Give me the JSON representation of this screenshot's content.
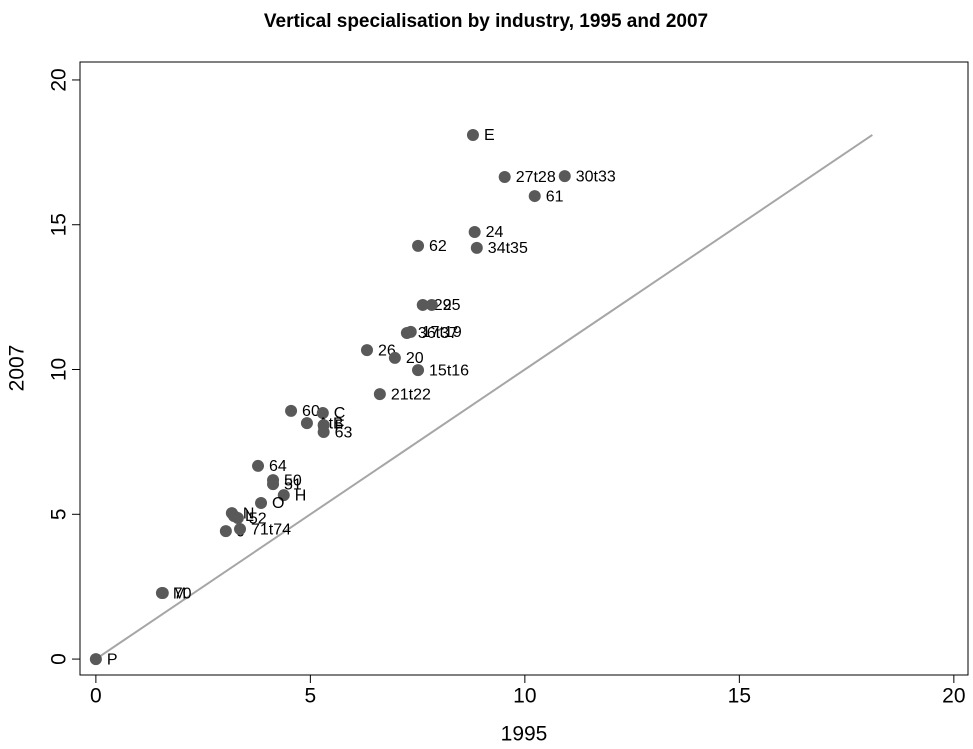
{
  "chart_data": {
    "type": "scatter",
    "title": "Vertical specialisation by industry, 1995 and 2007",
    "xlabel": "1995",
    "ylabel": "2007",
    "point_labels": [
      "E",
      "27t28",
      "30t33",
      "61",
      "24",
      "34t35",
      "62",
      "29",
      "25",
      "36t37",
      "17t19",
      "26",
      "20",
      "15t16",
      "21t22",
      "60",
      "C",
      "AtB",
      "F",
      "63",
      "64",
      "50",
      "51",
      "H",
      "O",
      "N",
      "L",
      "52",
      "J",
      "71t74",
      "M",
      "70",
      "P"
    ],
    "x": [
      8.79,
      9.53,
      10.93,
      10.23,
      8.83,
      8.88,
      7.51,
      7.62,
      7.83,
      7.25,
      7.34,
      6.32,
      6.97,
      7.51,
      6.62,
      4.55,
      5.29,
      4.92,
      5.31,
      5.31,
      3.78,
      4.13,
      4.13,
      4.38,
      3.85,
      3.17,
      3.22,
      3.31,
      3.03,
      3.36,
      1.54,
      1.56,
      0
    ],
    "values": [
      18.1,
      16.65,
      16.68,
      15.99,
      14.75,
      14.2,
      14.27,
      12.23,
      12.23,
      11.26,
      11.3,
      10.67,
      10.4,
      9.98,
      9.15,
      8.57,
      8.5,
      8.15,
      8.08,
      7.84,
      6.67,
      6.18,
      6.04,
      5.66,
      5.39,
      5.04,
      4.94,
      4.87,
      4.42,
      4.49,
      2.28,
      2.28,
      0
    ],
    "color": "#595959",
    "line_color": "#a6a6a6",
    "diagonal": [
      0,
      18.1
    ],
    "xlim": [
      -0.37,
      20.33
    ],
    "ylim": [
      -0.55,
      20.62
    ],
    "xticks": [
      0,
      5,
      10,
      15,
      20
    ],
    "yticks": [
      0,
      5,
      10,
      15,
      20
    ]
  }
}
